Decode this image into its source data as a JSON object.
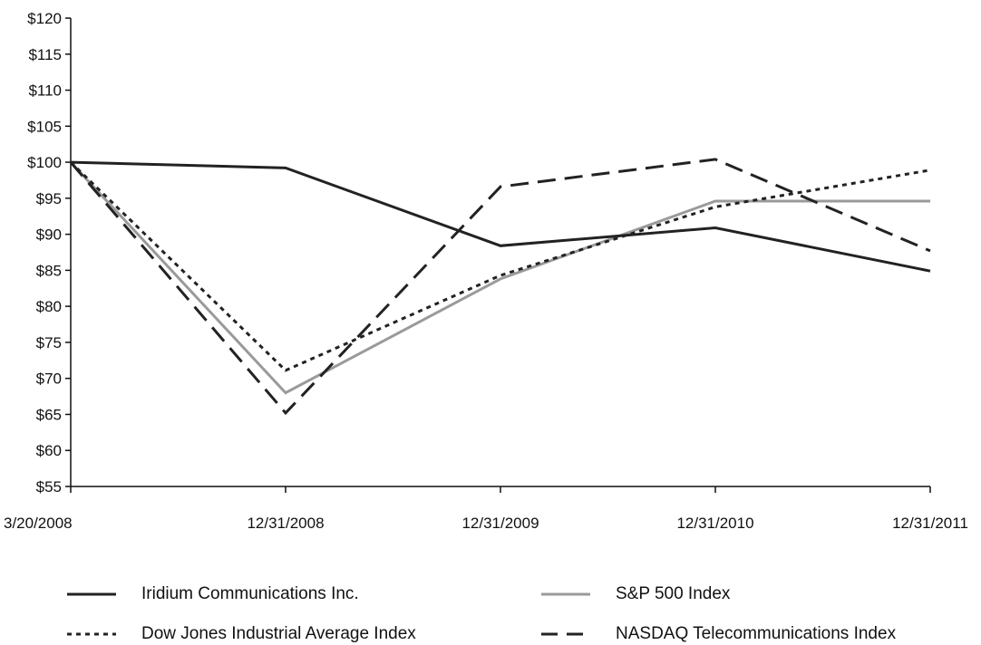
{
  "chart_data": {
    "type": "line",
    "title": "",
    "xlabel": "",
    "ylabel": "",
    "categories": [
      "3/20/2008",
      "12/31/2008",
      "12/31/2009",
      "12/31/2010",
      "12/31/2011"
    ],
    "y_ticks": [
      "$55",
      "$60",
      "$65",
      "$70",
      "$75",
      "$80",
      "$85",
      "$90",
      "$95",
      "$100",
      "$105",
      "$110",
      "$115",
      "$120"
    ],
    "ylim": [
      55,
      120
    ],
    "grid": false,
    "legend_position": "bottom",
    "series": [
      {
        "name": "Iridium Communications Inc.",
        "values": [
          100,
          99.2,
          88.4,
          90.9,
          84.9
        ],
        "color": "#222222",
        "style": "solid"
      },
      {
        "name": "S&P 500 Index",
        "values": [
          100,
          68.0,
          83.8,
          94.6,
          94.6
        ],
        "color": "#9a9a9a",
        "style": "solid"
      },
      {
        "name": "Dow Jones Industrial Average Index",
        "values": [
          100,
          71.1,
          84.3,
          93.8,
          98.9
        ],
        "color": "#222222",
        "style": "dotted"
      },
      {
        "name": "NASDAQ Telecommunications Index",
        "values": [
          100,
          65.2,
          96.6,
          100.4,
          87.7
        ],
        "color": "#222222",
        "style": "dashed"
      }
    ]
  }
}
